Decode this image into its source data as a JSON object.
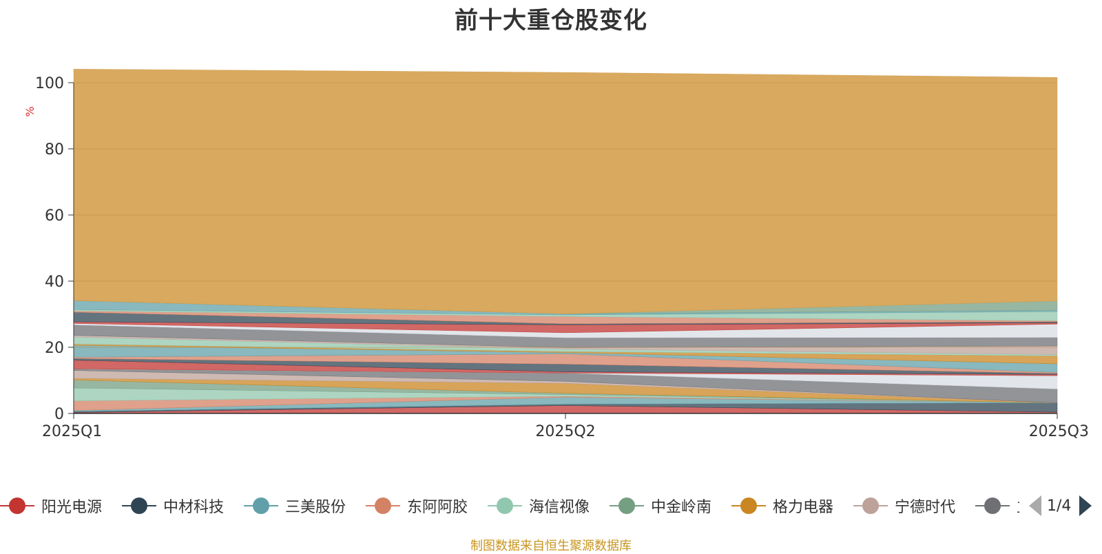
{
  "chart_data": {
    "type": "area",
    "stacked": true,
    "title": "前十大重仓股变化",
    "ylabel": "%",
    "categories": [
      "2025Q1",
      "2025Q2",
      "2025Q3"
    ],
    "ylim": [
      0,
      100
    ],
    "yticks": [
      0,
      20,
      40,
      60,
      80,
      100
    ],
    "grid": true,
    "legend_position": "bottom",
    "series": [
      {
        "name": "阳光电源",
        "color": "#c23531",
        "values": [
          0.3,
          2.4,
          0.4
        ]
      },
      {
        "name": "中材科技",
        "color": "#2f4554",
        "values": [
          0.3,
          0.4,
          2.8
        ]
      },
      {
        "name": "三美股份",
        "color": "#61a0a8",
        "values": [
          0.3,
          2.1,
          0.0
        ]
      },
      {
        "name": "东阿阿胶",
        "color": "#d48265",
        "values": [
          2.9,
          0.3,
          0.0
        ]
      },
      {
        "name": "海信视像",
        "color": "#91c7ae",
        "values": [
          3.9,
          0.5,
          0.0
        ]
      },
      {
        "name": "中金岭南",
        "color": "#749f83",
        "values": [
          2.4,
          0.4,
          0.0
        ]
      },
      {
        "name": "格力电器",
        "color": "#ca8622",
        "values": [
          0.5,
          3.0,
          0.0
        ]
      },
      {
        "name": "宁德时代",
        "color": "#bda29a",
        "values": [
          2.4,
          0.6,
          0.0
        ]
      },
      {
        "name": "立讯精密",
        "color": "#6e7074",
        "values": [
          0.5,
          2.5,
          4.2
        ]
      },
      {
        "name": "",
        "color": "#d8dde4",
        "values": [
          0.0,
          0.0,
          4.0
        ]
      },
      {
        "name": "",
        "color": "#c23531",
        "values": [
          2.6,
          0.4,
          0.4
        ]
      },
      {
        "name": "",
        "color": "#2f4554",
        "values": [
          0.5,
          2.3,
          0.3
        ]
      },
      {
        "name": "",
        "color": "#d48265",
        "values": [
          0.4,
          3.1,
          0.3
        ]
      },
      {
        "name": "",
        "color": "#61a0a8",
        "values": [
          3.6,
          0.4,
          2.6
        ]
      },
      {
        "name": "",
        "color": "#ca8622",
        "values": [
          0.4,
          0.3,
          2.4
        ]
      },
      {
        "name": "",
        "color": "#91c7ae",
        "values": [
          2.1,
          0.8,
          0.4
        ]
      },
      {
        "name": "",
        "color": "#bda29a",
        "values": [
          0.5,
          0.4,
          2.6
        ]
      },
      {
        "name": "",
        "color": "#6e7074",
        "values": [
          3.2,
          3.0,
          2.6
        ]
      },
      {
        "name": "",
        "color": "#d8dde4",
        "values": [
          0.4,
          1.5,
          4.0
        ]
      },
      {
        "name": "",
        "color": "#c23531",
        "values": [
          0.5,
          2.4,
          0.4
        ]
      },
      {
        "name": "",
        "color": "#2f4554",
        "values": [
          2.9,
          0.3,
          0.3
        ]
      },
      {
        "name": "",
        "color": "#d48265",
        "values": [
          0.4,
          2.2,
          0.3
        ]
      },
      {
        "name": "",
        "color": "#91c7ae",
        "values": [
          0.4,
          0.5,
          2.8
        ]
      },
      {
        "name": "",
        "color": "#61a0a8",
        "values": [
          2.7,
          0.3,
          0.4
        ]
      },
      {
        "name": "",
        "color": "#749f83",
        "values": [
          0.0,
          0.0,
          2.8
        ]
      },
      {
        "name": "",
        "color": "#d4a04e",
        "values": [
          70.0,
          73.0,
          67.6
        ]
      }
    ]
  },
  "legend": {
    "visible_items": [
      "阳光电源",
      "中材科技",
      "三美股份",
      "东阿阿胶",
      "海信视像",
      "中金岭南",
      "格力电器",
      "宁德时代",
      "立讯精密"
    ],
    "page_label": "1/4"
  },
  "footer": {
    "source": "制图数据来自恒生聚源数据库"
  }
}
